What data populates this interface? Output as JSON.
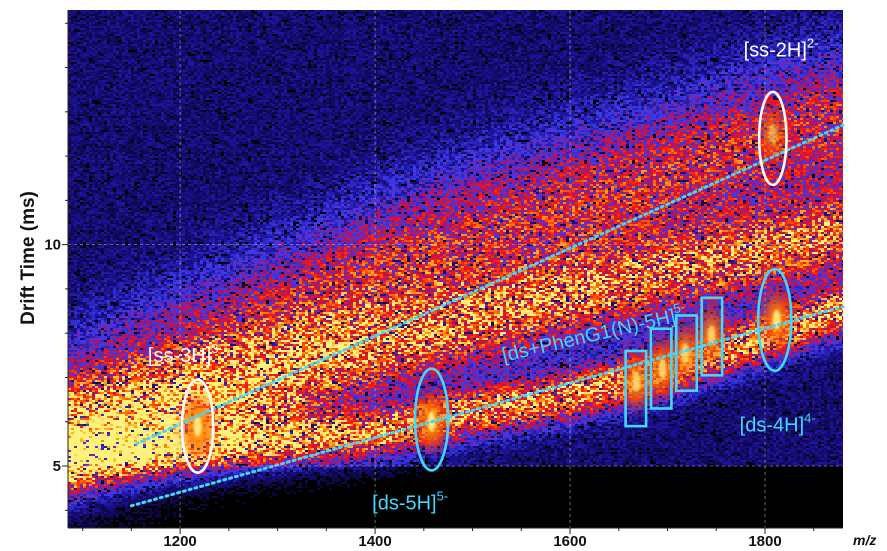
{
  "chart_data": {
    "type": "heatmap",
    "title": "",
    "xlabel": "m/z",
    "ylabel": "Drift Time (ms)",
    "xlim": [
      1085,
      1880
    ],
    "ylim": [
      3.6,
      15.3
    ],
    "xticks": [
      1200,
      1400,
      1600,
      1800
    ],
    "yticks": [
      5,
      10
    ],
    "grid": true,
    "background": "#000000",
    "colormap": [
      "#000000",
      "#1a0f8c",
      "#3b3cf0",
      "#b21060",
      "#ff1a00",
      "#ff8a00",
      "#fff27a"
    ],
    "x_tick_labels": [
      "1200",
      "1400",
      "1600",
      "1800"
    ],
    "y_tick_labels": [
      "5",
      "10"
    ],
    "bands": [
      {
        "points": [
          [
            1090,
            6.2
          ],
          [
            1200,
            7.3
          ],
          [
            1300,
            8.3
          ],
          [
            1400,
            9.4
          ],
          [
            1500,
            10.2
          ],
          [
            1600,
            10.9
          ],
          [
            1700,
            11.6
          ],
          [
            1800,
            12.3
          ],
          [
            1880,
            12.8
          ]
        ],
        "halfwidth": 1.6,
        "peak": 0.55
      },
      {
        "points": [
          [
            1090,
            5.5
          ],
          [
            1200,
            6.2
          ],
          [
            1300,
            6.9
          ],
          [
            1400,
            7.6
          ],
          [
            1500,
            8.2
          ],
          [
            1600,
            8.8
          ],
          [
            1700,
            9.3
          ],
          [
            1800,
            9.8
          ],
          [
            1880,
            10.2
          ]
        ],
        "halfwidth": 1.0,
        "peak": 0.7
      },
      {
        "points": [
          [
            1090,
            5.1
          ],
          [
            1200,
            5.4
          ],
          [
            1300,
            5.55
          ],
          [
            1400,
            5.75
          ],
          [
            1500,
            6.2
          ],
          [
            1600,
            6.6
          ],
          [
            1700,
            7.15
          ],
          [
            1800,
            7.9
          ],
          [
            1880,
            8.5
          ]
        ],
        "halfwidth": 0.55,
        "peak": 0.85
      }
    ],
    "hotspots": [
      {
        "label": "[ss-3H]",
        "charge": "3-",
        "x": 1218,
        "y": 5.9,
        "intensity": 1.0
      },
      {
        "label": "[ds-5H]",
        "charge": "5-",
        "x": 1458,
        "y": 6.0,
        "intensity": 1.0
      },
      {
        "label": "[ds-4H]",
        "charge": "4-",
        "x": 1812,
        "y": 8.3,
        "intensity": 0.95
      },
      {
        "label": "[ss-2H]",
        "charge": "2-",
        "x": 1808,
        "y": 12.5,
        "intensity": 0.55
      },
      {
        "label": "[ds+PhenG1(N)-5H]",
        "charge": "5-",
        "x": 1668,
        "y": 6.9,
        "intensity": 0.8
      },
      {
        "label": "",
        "charge": "",
        "x": 1695,
        "y": 7.2,
        "intensity": 0.8
      },
      {
        "label": "",
        "charge": "",
        "x": 1718,
        "y": 7.55,
        "intensity": 0.8
      },
      {
        "label": "",
        "charge": "",
        "x": 1745,
        "y": 7.95,
        "intensity": 0.8
      }
    ],
    "trend_lines": [
      {
        "series": "[ss-nH]",
        "x": [
          1155,
          1880
        ],
        "y": [
          5.5,
          12.7
        ],
        "color": "#3fd8ff"
      },
      {
        "series": "[ds-nH]",
        "x": [
          1150,
          1880
        ],
        "y": [
          4.1,
          8.6
        ],
        "color": "#3fd8ff"
      }
    ],
    "ellipses": [
      {
        "label": "[ss-3H]",
        "x": 1218,
        "y": 5.9,
        "rx_mz": 16,
        "ry_ms": 1.05,
        "color": "#ffffff"
      },
      {
        "label": "[ds-5H]",
        "x": 1458,
        "y": 6.05,
        "rx_mz": 17,
        "ry_ms": 1.15,
        "color": "#3fd8ff"
      },
      {
        "label": "[ss-2H]",
        "x": 1808,
        "y": 12.4,
        "rx_mz": 14,
        "ry_ms": 1.05,
        "color": "#ffffff"
      },
      {
        "label": "[ds-4H]",
        "x": 1810,
        "y": 8.3,
        "rx_mz": 17,
        "ry_ms": 1.15,
        "color": "#3fd8ff"
      }
    ],
    "boxes": [
      {
        "x0": 1657,
        "x1": 1678,
        "y0": 5.9,
        "y1": 7.6,
        "color": "#3fd8ff"
      },
      {
        "x0": 1683,
        "x1": 1704,
        "y0": 6.3,
        "y1": 8.1,
        "color": "#3fd8ff"
      },
      {
        "x0": 1709,
        "x1": 1730,
        "y0": 6.7,
        "y1": 8.4,
        "color": "#3fd8ff"
      },
      {
        "x0": 1735,
        "x1": 1756,
        "y0": 7.05,
        "y1": 8.8,
        "color": "#3fd8ff"
      }
    ],
    "annotations": [
      {
        "base": "[ss-3H]",
        "sup": "3-",
        "x": 1167,
        "y": 7.35,
        "color": "#ffffff",
        "anchor": "start",
        "rotate": 0
      },
      {
        "base": "[ds-5H]",
        "sup": "5-",
        "x": 1397,
        "y": 4.02,
        "color": "#3fd8ff",
        "anchor": "start",
        "rotate": 0
      },
      {
        "base": "[ss-2H]",
        "sup": "2-",
        "x": 1778,
        "y": 14.25,
        "color": "#ffffff",
        "anchor": "start",
        "rotate": 0
      },
      {
        "base": "[ds-4H]",
        "sup": "4-",
        "x": 1774,
        "y": 5.78,
        "color": "#3fd8ff",
        "anchor": "start",
        "rotate": 0
      },
      {
        "base": "[ds+PhenG1(N)-5H]",
        "sup": "5-",
        "x": 1532,
        "y": 7.35,
        "color": "#3fd8ff",
        "anchor": "start",
        "rotate": -13
      }
    ]
  }
}
